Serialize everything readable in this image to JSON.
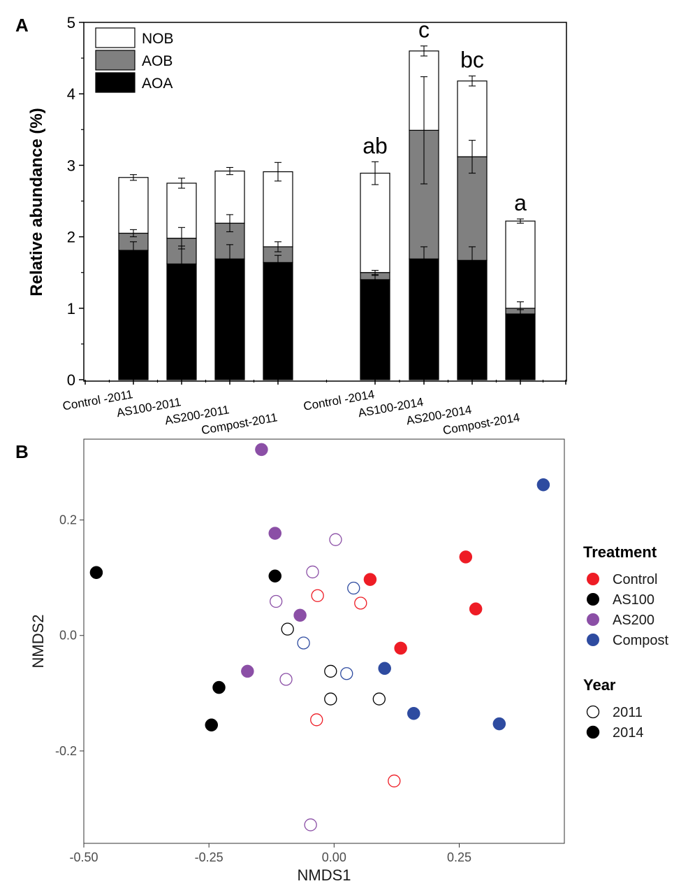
{
  "chart_data": [
    {
      "panel": "A",
      "type": "bar",
      "stacked": true,
      "ylabel": "Relative abundance (%)",
      "xlabel": "",
      "ylim": [
        0,
        5
      ],
      "yticks": [
        "0",
        "1",
        "2",
        "3",
        "4",
        "5"
      ],
      "categories": [
        "Control -2011",
        "AS100-2011",
        "AS200-2011",
        "Compost-2011",
        "Control -2014",
        "AS100-2014",
        "AS200-2014",
        "Compost-2014"
      ],
      "series": [
        {
          "name": "AOA",
          "color": "#000000",
          "values": [
            1.81,
            1.62,
            1.69,
            1.64,
            1.4,
            1.69,
            1.67,
            0.92
          ],
          "errors": [
            0.12,
            0.25,
            0.2,
            0.1,
            0.06,
            0.17,
            0.19,
            0.06
          ]
        },
        {
          "name": "AOB",
          "color": "#808080",
          "values": [
            0.24,
            0.36,
            0.5,
            0.22,
            0.1,
            1.8,
            1.45,
            0.08
          ],
          "errors": [
            0.05,
            0.15,
            0.12,
            0.07,
            0.03,
            0.75,
            0.23,
            0.09
          ]
        },
        {
          "name": "NOB",
          "color": "#ffffff",
          "values": [
            0.78,
            0.77,
            0.73,
            1.05,
            1.39,
            1.11,
            1.06,
            1.22
          ],
          "errors": [
            0.04,
            0.07,
            0.05,
            0.13,
            0.16,
            0.07,
            0.07,
            0.03
          ]
        }
      ],
      "legend": [
        "NOB",
        "AOB",
        "AOA"
      ],
      "legend_position": "top-left",
      "annotations": [
        "",
        "",
        "",
        "",
        "ab",
        "c",
        "bc",
        "a"
      ]
    },
    {
      "panel": "B",
      "type": "scatter",
      "xlabel": "NMDS1",
      "ylabel": "NMDS2",
      "xlim": [
        -0.5,
        0.46
      ],
      "ylim": [
        -0.36,
        0.34
      ],
      "xticks": [
        "-0.50",
        "-0.25",
        "0.00",
        "0.25"
      ],
      "xtick_values": [
        -0.5,
        -0.25,
        0,
        0.25
      ],
      "yticks": [
        "-0.2",
        "0.0",
        "0.2"
      ],
      "ytick_values": [
        -0.2,
        0,
        0.2
      ],
      "legend_treatment_title": "Treatment",
      "legend_year_title": "Year",
      "treatments": [
        {
          "name": "Control",
          "color": "#ee1c25"
        },
        {
          "name": "AS100",
          "color": "#000000"
        },
        {
          "name": "AS200",
          "color": "#8b4fa6"
        },
        {
          "name": "Compost",
          "color": "#2e4ba0"
        }
      ],
      "years": [
        {
          "name": "2011",
          "filled": false
        },
        {
          "name": "2014",
          "filled": true
        }
      ],
      "points": [
        {
          "x": -0.145,
          "y": 0.322,
          "treatment": "AS200",
          "year": "2014"
        },
        {
          "x": 0.418,
          "y": 0.261,
          "treatment": "Compost",
          "year": "2014"
        },
        {
          "x": -0.118,
          "y": 0.177,
          "treatment": "AS200",
          "year": "2014"
        },
        {
          "x": 0.003,
          "y": 0.166,
          "treatment": "AS200",
          "year": "2011"
        },
        {
          "x": 0.263,
          "y": 0.136,
          "treatment": "Control",
          "year": "2014"
        },
        {
          "x": -0.475,
          "y": 0.109,
          "treatment": "AS100",
          "year": "2014"
        },
        {
          "x": -0.043,
          "y": 0.11,
          "treatment": "AS200",
          "year": "2011"
        },
        {
          "x": -0.118,
          "y": 0.103,
          "treatment": "AS100",
          "year": "2014"
        },
        {
          "x": 0.072,
          "y": 0.097,
          "treatment": "Control",
          "year": "2014"
        },
        {
          "x": 0.039,
          "y": 0.082,
          "treatment": "Compost",
          "year": "2011"
        },
        {
          "x": -0.033,
          "y": 0.069,
          "treatment": "Control",
          "year": "2011"
        },
        {
          "x": -0.116,
          "y": 0.059,
          "treatment": "AS200",
          "year": "2011"
        },
        {
          "x": 0.053,
          "y": 0.056,
          "treatment": "Control",
          "year": "2011"
        },
        {
          "x": 0.283,
          "y": 0.046,
          "treatment": "Control",
          "year": "2014"
        },
        {
          "x": -0.068,
          "y": 0.035,
          "treatment": "AS200",
          "year": "2014"
        },
        {
          "x": -0.093,
          "y": 0.011,
          "treatment": "AS100",
          "year": "2011"
        },
        {
          "x": -0.061,
          "y": -0.013,
          "treatment": "Compost",
          "year": "2011"
        },
        {
          "x": 0.133,
          "y": -0.022,
          "treatment": "Control",
          "year": "2014"
        },
        {
          "x": -0.173,
          "y": -0.062,
          "treatment": "AS200",
          "year": "2014"
        },
        {
          "x": -0.007,
          "y": -0.062,
          "treatment": "AS100",
          "year": "2011"
        },
        {
          "x": 0.025,
          "y": -0.066,
          "treatment": "Compost",
          "year": "2011"
        },
        {
          "x": 0.101,
          "y": -0.057,
          "treatment": "Compost",
          "year": "2014"
        },
        {
          "x": -0.096,
          "y": -0.076,
          "treatment": "AS200",
          "year": "2011"
        },
        {
          "x": -0.23,
          "y": -0.09,
          "treatment": "AS100",
          "year": "2014"
        },
        {
          "x": -0.007,
          "y": -0.11,
          "treatment": "AS100",
          "year": "2011"
        },
        {
          "x": 0.09,
          "y": -0.11,
          "treatment": "AS100",
          "year": "2011"
        },
        {
          "x": 0.159,
          "y": -0.135,
          "treatment": "Compost",
          "year": "2014"
        },
        {
          "x": -0.035,
          "y": -0.146,
          "treatment": "Control",
          "year": "2011"
        },
        {
          "x": 0.33,
          "y": -0.153,
          "treatment": "Compost",
          "year": "2014"
        },
        {
          "x": -0.245,
          "y": -0.155,
          "treatment": "AS100",
          "year": "2014"
        },
        {
          "x": 0.12,
          "y": -0.252,
          "treatment": "Control",
          "year": "2011"
        },
        {
          "x": -0.047,
          "y": -0.328,
          "treatment": "AS200",
          "year": "2011"
        }
      ]
    }
  ],
  "panel_labels": {
    "a": "A",
    "b": "B"
  }
}
